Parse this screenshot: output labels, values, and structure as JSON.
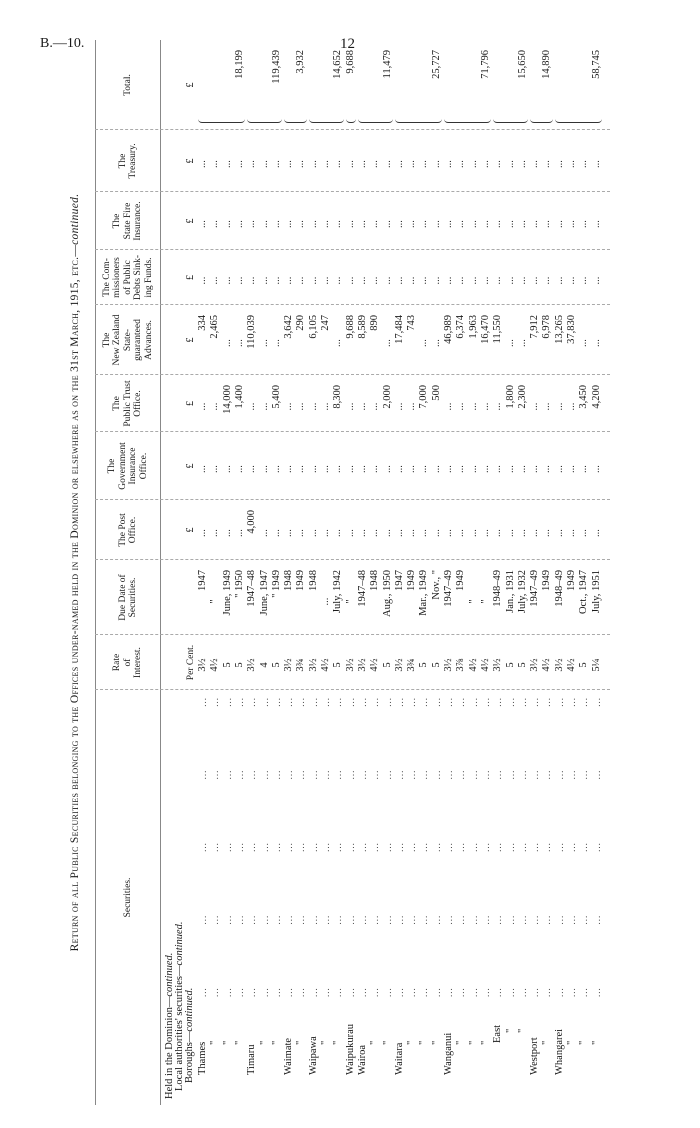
{
  "page": {
    "reference": "B.—10.",
    "number": "12"
  },
  "title": {
    "text": "Return of all Public Securities belonging to the Offices under-named held in the Dominion or elsewhere as on the 31st March, 1915, etc.—",
    "continued": "continued."
  },
  "headers": {
    "securities": [
      "Securities."
    ],
    "rate": [
      "Rate",
      "of",
      "Interest."
    ],
    "due": [
      "Due Date of",
      "Securities."
    ],
    "post": [
      "The Post",
      "Office."
    ],
    "govt": [
      "The",
      "Government",
      "Insurance",
      "Office."
    ],
    "pt": [
      "The",
      "Public Trust",
      "Office."
    ],
    "nz": [
      "The",
      "New Zealand",
      "State-",
      "guaranteed",
      "Advances."
    ],
    "comm": [
      "The Com-",
      "missioners",
      "of Public",
      "Debts Sink-",
      "ing Funds."
    ],
    "fire": [
      "The",
      "State Fire",
      "Insurance."
    ],
    "treas": [
      "The",
      "Treasury."
    ],
    "total": [
      "Total."
    ]
  },
  "sections": [
    {
      "text": "Held in the Dominion—",
      "cont": "continued."
    },
    {
      "text": "Local authorities' securities—",
      "cont": "continued."
    },
    {
      "text": "Boroughs—",
      "cont": "continued."
    }
  ],
  "units": {
    "rate": "Per Cent.",
    "money": "£"
  },
  "leader": [
    "...",
    "...",
    "...",
    "...",
    "..."
  ],
  "rows": [
    {
      "sec": "Thames",
      "rate": "3½",
      "due": "1947",
      "post": "...",
      "govt": "...",
      "pt": "...",
      "nz": "334",
      "comm": "...",
      "fire": "...",
      "treas": "...",
      "total": ""
    },
    {
      "sec": "\"",
      "rate": "4½",
      "due": "\"",
      "post": "...",
      "govt": "...",
      "pt": "...",
      "nz": "2,465",
      "comm": "...",
      "fire": "...",
      "treas": "...",
      "total": ""
    },
    {
      "sec": "\"",
      "rate": "5",
      "due": "June, 1949",
      "post": "...",
      "govt": "...",
      "pt": "14,000",
      "nz": "...",
      "comm": "...",
      "fire": "...",
      "treas": "...",
      "total": ""
    },
    {
      "sec": "\"",
      "rate": "5",
      "due": "\" 1950",
      "post": "...",
      "govt": "...",
      "pt": "1,400",
      "nz": "...",
      "comm": "...",
      "fire": "...",
      "treas": "...",
      "total": "18,199"
    },
    {
      "sec": "Timaru",
      "rate": "3½",
      "due": "1947–48",
      "post": "4,000",
      "govt": "...",
      "pt": "...",
      "nz": "110,039",
      "comm": "...",
      "fire": "...",
      "treas": "...",
      "total": ""
    },
    {
      "sec": "\"",
      "rate": "4",
      "due": "June, 1947",
      "post": "...",
      "govt": "...",
      "pt": "...",
      "nz": "...",
      "comm": "...",
      "fire": "...",
      "treas": "...",
      "total": ""
    },
    {
      "sec": "\"",
      "rate": "5",
      "due": "\" 1949",
      "post": "...",
      "govt": "...",
      "pt": "5,400",
      "nz": "...",
      "comm": "...",
      "fire": "...",
      "treas": "...",
      "total": "119,439"
    },
    {
      "sec": "Waimate",
      "rate": "3½",
      "due": "1948",
      "post": "...",
      "govt": "...",
      "pt": "...",
      "nz": "3,642",
      "comm": "...",
      "fire": "...",
      "treas": "...",
      "total": ""
    },
    {
      "sec": "\"",
      "rate": "3¾",
      "due": "1949",
      "post": "...",
      "govt": "...",
      "pt": "...",
      "nz": "290",
      "comm": "...",
      "fire": "...",
      "treas": "...",
      "total": "3,932"
    },
    {
      "sec": "Waipawa",
      "rate": "3½",
      "due": "1948",
      "post": "...",
      "govt": "...",
      "pt": "...",
      "nz": "6,105",
      "comm": "...",
      "fire": "...",
      "treas": "...",
      "total": ""
    },
    {
      "sec": "\"",
      "rate": "4½",
      "due": "...",
      "post": "...",
      "govt": "...",
      "pt": "...",
      "nz": "247",
      "comm": "...",
      "fire": "...",
      "treas": "...",
      "total": ""
    },
    {
      "sec": "\"",
      "rate": "5",
      "due": "July, 1942",
      "post": "...",
      "govt": "...",
      "pt": "8,300",
      "nz": "...",
      "comm": "...",
      "fire": "...",
      "treas": "...",
      "total": "14,652"
    },
    {
      "sec": "Waipukurau",
      "rate": "3½",
      "due": "\"",
      "post": "...",
      "govt": "...",
      "pt": "...",
      "nz": "9,688",
      "comm": "...",
      "fire": "...",
      "treas": "...",
      "total": "9,688"
    },
    {
      "sec": "Wairoa",
      "rate": "3½",
      "due": "1947–48",
      "post": "...",
      "govt": "...",
      "pt": "...",
      "nz": "8,589",
      "comm": "...",
      "fire": "...",
      "treas": "...",
      "total": ""
    },
    {
      "sec": "\"",
      "rate": "4½",
      "due": "1948",
      "post": "...",
      "govt": "...",
      "pt": "...",
      "nz": "890",
      "comm": "...",
      "fire": "...",
      "treas": "...",
      "total": ""
    },
    {
      "sec": "\"",
      "rate": "5",
      "due": "Aug., 1950",
      "post": "...",
      "govt": "...",
      "pt": "2,000",
      "nz": "...",
      "comm": "...",
      "fire": "...",
      "treas": "...",
      "total": "11,479"
    },
    {
      "sec": "Waitara",
      "rate": "3½",
      "due": "1947",
      "post": "...",
      "govt": "...",
      "pt": "...",
      "nz": "17,484",
      "comm": "...",
      "fire": "...",
      "treas": "...",
      "total": ""
    },
    {
      "sec": "\"",
      "rate": "3¾",
      "due": "1949",
      "post": "...",
      "govt": "...",
      "pt": "...",
      "nz": "743",
      "comm": "...",
      "fire": "...",
      "treas": "...",
      "total": ""
    },
    {
      "sec": "\"",
      "rate": "5",
      "due": "Mar., 1949",
      "post": "...",
      "govt": "...",
      "pt": "7,000",
      "nz": "...",
      "comm": "...",
      "fire": "...",
      "treas": "...",
      "total": ""
    },
    {
      "sec": "\"",
      "rate": "5",
      "due": "Nov., \"",
      "post": "...",
      "govt": "...",
      "pt": "500",
      "nz": "...",
      "comm": "...",
      "fire": "...",
      "treas": "...",
      "total": "25,727"
    },
    {
      "sec": "Wanganui",
      "rate": "3½",
      "due": "1947–49",
      "post": "...",
      "govt": "...",
      "pt": "...",
      "nz": "46,989",
      "comm": "...",
      "fire": "...",
      "treas": "...",
      "total": ""
    },
    {
      "sec": "\"",
      "rate": "3⅞",
      "due": "1949",
      "post": "...",
      "govt": "...",
      "pt": "...",
      "nz": "6,374",
      "comm": "...",
      "fire": "...",
      "treas": "...",
      "total": ""
    },
    {
      "sec": "\"",
      "rate": "4½",
      "due": "\"",
      "post": "...",
      "govt": "...",
      "pt": "...",
      "nz": "1,963",
      "comm": "...",
      "fire": "...",
      "treas": "...",
      "total": ""
    },
    {
      "sec": "\"",
      "rate": "4½",
      "due": "\"",
      "post": "...",
      "govt": "...",
      "pt": "...",
      "nz": "16,470",
      "comm": "...",
      "fire": "...",
      "treas": "...",
      "total": "71,796"
    },
    {
      "sec": "East",
      "rate": "3½",
      "due": "1948–49",
      "post": "...",
      "govt": "...",
      "pt": "...",
      "nz": "11,550",
      "comm": "...",
      "fire": "...",
      "treas": "...",
      "total": ""
    },
    {
      "sec": "\"",
      "rate": "5",
      "due": "Jan., 1931",
      "post": "...",
      "govt": "...",
      "pt": "1,800",
      "nz": "...",
      "comm": "...",
      "fire": "...",
      "treas": "...",
      "total": ""
    },
    {
      "sec": "\"",
      "rate": "5",
      "due": "July, 1932",
      "post": "...",
      "govt": "...",
      "pt": "2,300",
      "nz": "...",
      "comm": "...",
      "fire": "...",
      "treas": "...",
      "total": "15,650"
    },
    {
      "sec": "Westport",
      "rate": "3½",
      "due": "1947–49",
      "post": "...",
      "govt": "...",
      "pt": "...",
      "nz": "7,912",
      "comm": "...",
      "fire": "...",
      "treas": "...",
      "total": ""
    },
    {
      "sec": "\"",
      "rate": "4½",
      "due": "1949",
      "post": "...",
      "govt": "...",
      "pt": "...",
      "nz": "6,978",
      "comm": "...",
      "fire": "...",
      "treas": "...",
      "total": "14,890"
    },
    {
      "sec": "Whangarei",
      "rate": "3½",
      "due": "1948–49",
      "post": "...",
      "govt": "...",
      "pt": "...",
      "nz": "13,265",
      "comm": "...",
      "fire": "...",
      "treas": "...",
      "total": ""
    },
    {
      "sec": "\"",
      "rate": "4½",
      "due": "1949",
      "post": "...",
      "govt": "...",
      "pt": "...",
      "nz": "37,830",
      "comm": "...",
      "fire": "...",
      "treas": "...",
      "total": ""
    },
    {
      "sec": "\"",
      "rate": "5",
      "due": "Oct., 1947",
      "post": "...",
      "govt": "...",
      "pt": "3,450",
      "nz": "...",
      "comm": "...",
      "fire": "...",
      "treas": "...",
      "total": ""
    },
    {
      "sec": "\"",
      "rate": "5¼",
      "due": "July, 1951",
      "post": "...",
      "govt": "...",
      "pt": "4,200",
      "nz": "...",
      "comm": "...",
      "fire": "...",
      "treas": "...",
      "total": "58,745"
    }
  ]
}
